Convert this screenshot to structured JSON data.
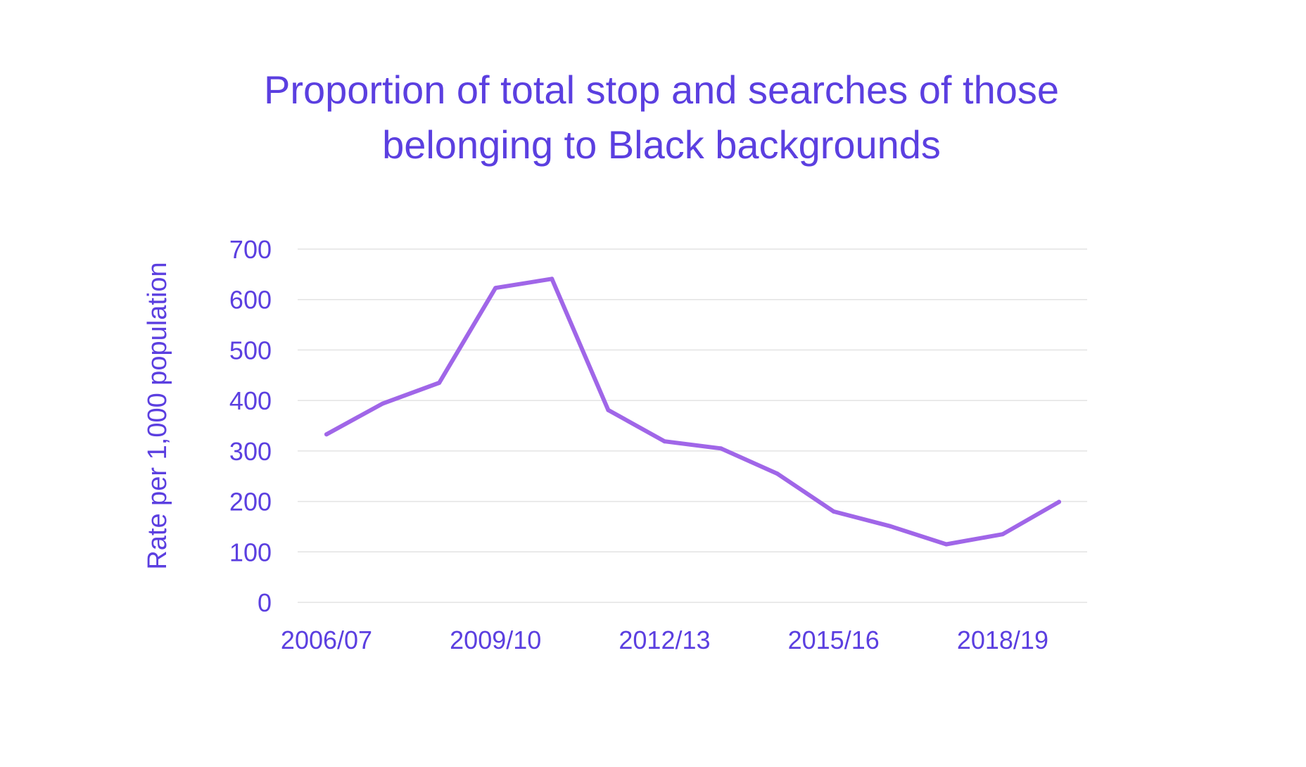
{
  "colors": {
    "text": "#5b3fe0",
    "line": "#a066e8",
    "grid": "#e3e3e3",
    "background": "#ffffff"
  },
  "chart_data": {
    "type": "line",
    "title": "Proportion of total stop and searches of those belonging to Black backgrounds",
    "title_lines": [
      "Proportion of total stop and searches of those",
      "belonging to Black backgrounds"
    ],
    "xlabel": "",
    "ylabel": "Rate per 1,000 population",
    "ylim": [
      0,
      700
    ],
    "yticks": [
      0,
      100,
      200,
      300,
      400,
      500,
      600,
      700
    ],
    "grid": true,
    "legend": "none",
    "x_tick_labels": [
      "2006/07",
      "2009/10",
      "2012/13",
      "2015/16",
      "2018/19"
    ],
    "x_tick_label_indices": [
      0,
      3,
      6,
      9,
      12
    ],
    "x_point_count": 14,
    "series": [
      {
        "values": [
          333,
          394,
          435,
          623,
          641,
          381,
          319,
          305,
          255,
          180,
          151,
          115,
          135,
          199
        ]
      }
    ]
  }
}
